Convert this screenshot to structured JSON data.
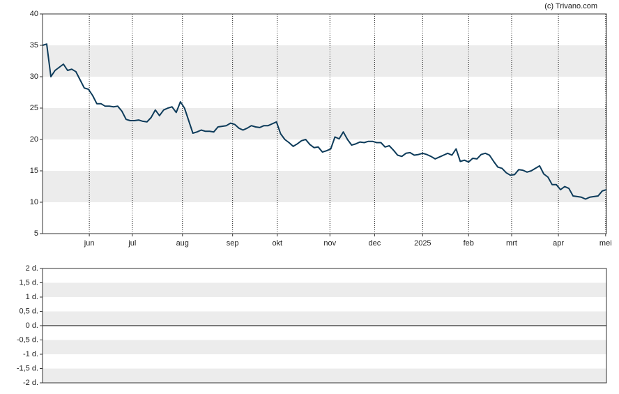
{
  "chart_data": [
    {
      "type": "line",
      "source": "(c) Trivano.com",
      "xlim": [
        0,
        135
      ],
      "xticks": [
        {
          "value": 11.2,
          "label": "jun"
        },
        {
          "value": 21.5,
          "label": "jul"
        },
        {
          "value": 33.5,
          "label": "aug"
        },
        {
          "value": 45.5,
          "label": "sep"
        },
        {
          "value": 56.2,
          "label": "okt"
        },
        {
          "value": 68.8,
          "label": "nov"
        },
        {
          "value": 79.5,
          "label": "dec"
        },
        {
          "value": 91,
          "label": "2025"
        },
        {
          "value": 102,
          "label": "feb"
        },
        {
          "value": 112.3,
          "label": "mrt"
        },
        {
          "value": 123.5,
          "label": "apr"
        },
        {
          "value": 134.8,
          "label": "mei"
        }
      ],
      "ylim": [
        5,
        40
      ],
      "yticks": [
        5,
        10,
        15,
        20,
        25,
        30,
        35,
        40
      ],
      "grid": true,
      "series": [
        {
          "color": "#0d3b5a",
          "values": [
            35,
            35.2,
            30,
            31,
            31.5,
            32,
            31,
            31.2,
            30.8,
            29.5,
            28.2,
            28,
            27,
            25.7,
            25.7,
            25.3,
            25.3,
            25.2,
            25.3,
            24.5,
            23.2,
            23,
            23,
            23.1,
            22.9,
            22.8,
            23.5,
            24.7,
            23.8,
            24.7,
            25,
            25.2,
            24.3,
            26,
            25,
            23,
            21,
            21.2,
            21.5,
            21.3,
            21.3,
            21.2,
            22,
            22.1,
            22.2,
            22.6,
            22.4,
            21.8,
            21.5,
            21.8,
            22.2,
            22,
            21.9,
            22.2,
            22.2,
            22.5,
            22.8,
            20.9,
            20,
            19.5,
            18.9,
            19.3,
            19.8,
            20,
            19.2,
            18.7,
            18.8,
            18,
            18.2,
            18.5,
            20.4,
            20.1,
            21.2,
            20,
            19.1,
            19.3,
            19.6,
            19.5,
            19.7,
            19.7,
            19.5,
            19.5,
            18.8,
            19,
            18.3,
            17.5,
            17.3,
            17.8,
            17.9,
            17.5,
            17.6,
            17.8,
            17.6,
            17.3,
            16.9,
            17.2,
            17.5,
            17.8,
            17.5,
            18.5,
            16.5,
            16.7,
            16.4,
            17,
            16.9,
            17.6,
            17.8,
            17.5,
            16.5,
            15.6,
            15.4,
            14.7,
            14.3,
            14.4,
            15.2,
            15.1,
            14.8,
            15,
            15.4,
            15.8,
            14.5,
            14,
            12.8,
            12.8,
            12,
            12.5,
            12.2,
            11,
            10.9,
            10.8,
            10.5,
            10.8,
            10.9,
            11,
            11.8,
            12
          ]
        }
      ]
    },
    {
      "type": "bar",
      "ylim": [
        -2,
        2
      ],
      "grid": true,
      "yticks": [
        {
          "value": 2,
          "label": "2 d."
        },
        {
          "value": 1.5,
          "label": "1,5 d."
        },
        {
          "value": 1,
          "label": "1 d."
        },
        {
          "value": 0.5,
          "label": "0,5 d."
        },
        {
          "value": 0,
          "label": "0 d."
        },
        {
          "value": -0.5,
          "label": "-0,5 d."
        },
        {
          "value": -1,
          "label": "-1 d."
        },
        {
          "value": -1.5,
          "label": "-1,5 d."
        },
        {
          "value": -2,
          "label": "-2 d."
        }
      ]
    }
  ]
}
